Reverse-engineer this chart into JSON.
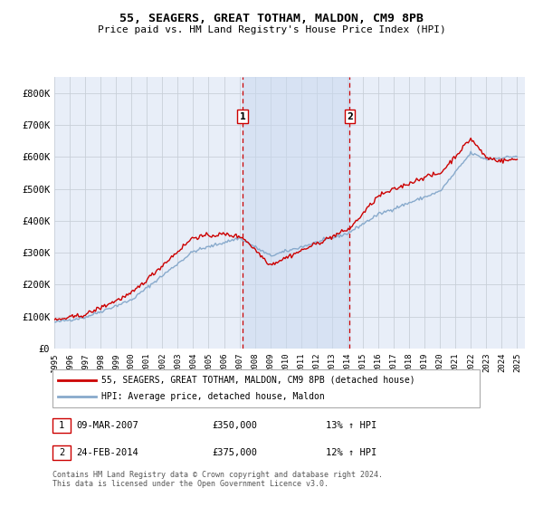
{
  "title": "55, SEAGERS, GREAT TOTHAM, MALDON, CM9 8PB",
  "subtitle": "Price paid vs. HM Land Registry's House Price Index (HPI)",
  "ylabel_ticks": [
    "£0",
    "£100K",
    "£200K",
    "£300K",
    "£400K",
    "£500K",
    "£600K",
    "£700K",
    "£800K"
  ],
  "ytick_vals": [
    0,
    100000,
    200000,
    300000,
    400000,
    500000,
    600000,
    700000,
    800000
  ],
  "ylim": [
    0,
    850000
  ],
  "xlim_start": 1995.0,
  "xlim_end": 2025.5,
  "marker1_x": 2007.19,
  "marker2_x": 2014.15,
  "marker1_label": "1",
  "marker2_label": "2",
  "legend_line1": "55, SEAGERS, GREAT TOTHAM, MALDON, CM9 8PB (detached house)",
  "legend_line2": "HPI: Average price, detached house, Maldon",
  "annotation1": [
    "1",
    "09-MAR-2007",
    "£350,000",
    "13% ↑ HPI"
  ],
  "annotation2": [
    "2",
    "24-FEB-2014",
    "£375,000",
    "12% ↑ HPI"
  ],
  "footer": "Contains HM Land Registry data © Crown copyright and database right 2024.\nThis data is licensed under the Open Government Licence v3.0.",
  "background_color": "#ffffff",
  "plot_bg_color": "#e8eef8",
  "grid_color": "#c8cfd8",
  "line1_color": "#cc0000",
  "line2_color": "#88aacc",
  "marker_box_color": "#cc0000",
  "dashed_line_color": "#cc0000",
  "shade_color": "#c8d8f0",
  "xticks": [
    1995,
    1996,
    1997,
    1998,
    1999,
    2000,
    2001,
    2002,
    2003,
    2004,
    2005,
    2006,
    2007,
    2008,
    2009,
    2010,
    2011,
    2012,
    2013,
    2014,
    2015,
    2016,
    2017,
    2018,
    2019,
    2020,
    2021,
    2022,
    2023,
    2024,
    2025
  ]
}
